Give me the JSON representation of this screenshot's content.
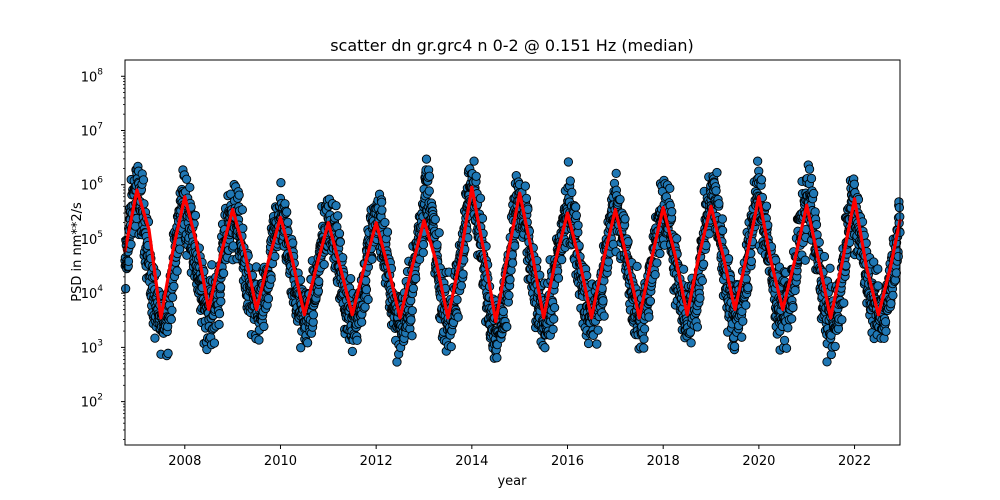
{
  "chart_data": {
    "type": "scatter",
    "title": "scatter dn gr.grc4 n 0-2 @ 0.151 Hz (median)",
    "xlabel": "year",
    "ylabel": "PSD in nm**2/s",
    "xlim": [
      2006.75,
      2022.95
    ],
    "ylim_log10": [
      1.2,
      8.3
    ],
    "yscale": "log",
    "x_ticks": [
      2008,
      2010,
      2012,
      2014,
      2016,
      2018,
      2020,
      2022
    ],
    "x_tick_labels": [
      "2008",
      "2010",
      "2012",
      "2014",
      "2016",
      "2018",
      "2020",
      "2022"
    ],
    "y_ticks_log10": [
      2,
      3,
      4,
      5,
      6,
      7,
      8
    ],
    "y_tick_labels": [
      "10",
      "10",
      "10",
      "10",
      "10",
      "10",
      "10"
    ],
    "y_tick_exponents": [
      "2",
      "3",
      "4",
      "5",
      "6",
      "7",
      "8"
    ],
    "grid": false,
    "legend": "none",
    "series": [
      {
        "kind": "scatter",
        "color": "#1f77b4",
        "edgecolor": "#000000",
        "peak_winter_log10": [
          5.9,
          5.8,
          5.5,
          5.4,
          5.3,
          5.3,
          5.35,
          5.95,
          5.85,
          5.5,
          5.55,
          5.6,
          5.6,
          5.8,
          5.6,
          5.75,
          5.3
        ],
        "trough_summer_log10": [
          3.5,
          3.7,
          3.7,
          3.6,
          3.6,
          3.5,
          3.6,
          3.4,
          3.6,
          3.6,
          3.6,
          3.6,
          3.7,
          3.7,
          3.5,
          3.6
        ],
        "scatter_spread_log10": 0.75
      },
      {
        "kind": "line",
        "label": "median",
        "color": "#ff0000",
        "x": [
          2006.75,
          2007.0,
          2007.25,
          2007.5,
          2007.75,
          2008.0,
          2008.25,
          2008.5,
          2008.75,
          2009.0,
          2009.25,
          2009.5,
          2009.75,
          2010.0,
          2010.25,
          2010.5,
          2010.75,
          2011.0,
          2011.25,
          2011.5,
          2011.75,
          2012.0,
          2012.25,
          2012.5,
          2012.75,
          2013.0,
          2013.25,
          2013.5,
          2013.75,
          2014.0,
          2014.25,
          2014.5,
          2014.75,
          2015.0,
          2015.25,
          2015.5,
          2015.75,
          2016.0,
          2016.25,
          2016.5,
          2016.75,
          2017.0,
          2017.25,
          2017.5,
          2017.75,
          2018.0,
          2018.25,
          2018.5,
          2018.75,
          2019.0,
          2019.25,
          2019.5,
          2019.75,
          2020.0,
          2020.25,
          2020.5,
          2020.75,
          2021.0,
          2021.25,
          2021.5,
          2021.75,
          2022.0,
          2022.25,
          2022.5,
          2022.75,
          2022.95
        ],
        "y": [
          60000,
          800000,
          150000,
          3500,
          60000,
          600000,
          80000,
          5000,
          50000,
          350000,
          60000,
          5000,
          40000,
          250000,
          40000,
          4000,
          30000,
          200000,
          30000,
          4000,
          30000,
          200000,
          30000,
          3500,
          30000,
          220000,
          40000,
          3500,
          40000,
          900000,
          60000,
          3000,
          50000,
          700000,
          60000,
          3500,
          40000,
          300000,
          40000,
          3500,
          40000,
          350000,
          40000,
          3500,
          40000,
          380000,
          50000,
          4000,
          50000,
          400000,
          50000,
          5000,
          50000,
          600000,
          40000,
          5000,
          40000,
          420000,
          40000,
          3500,
          40000,
          550000,
          30000,
          4000,
          30000,
          220000
        ]
      }
    ]
  }
}
